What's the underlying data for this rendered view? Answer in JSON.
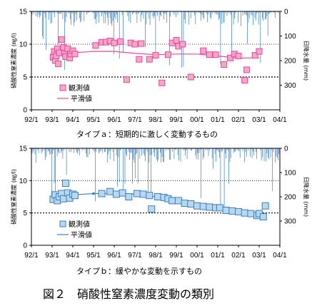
{
  "figure_title": "図２　硝酸性窒素濃度変動の類別",
  "chart_data": [
    {
      "type": "scatter",
      "caption": "タイプａ：短期的に激しく変動するもの",
      "ylabel": "硝酸性窒素濃度 (㎎/l)",
      "y2label": "日降水量 (mm)",
      "ylim": [
        0,
        15
      ],
      "y2lim": [
        0,
        400
      ],
      "yticks": [
        "0",
        "5",
        "10",
        "15"
      ],
      "y2ticks": [
        "0",
        "100",
        "200",
        "300"
      ],
      "xticks": [
        "92/1",
        "93/1",
        "94/1",
        "95/1",
        "96/1",
        "97/1",
        "98/1",
        "99/1",
        "00/1",
        "01/1",
        "02/1",
        "03/1",
        "04/1"
      ],
      "reference_line": 5,
      "legend_position": "bottom-left",
      "series": [
        {
          "name": "観測値",
          "color": "#e8489a",
          "fill": "#f5a6c9",
          "x": [
            1993.05,
            1993.1,
            1993.15,
            1993.2,
            1993.25,
            1993.3,
            1993.35,
            1993.45,
            1993.55,
            1993.6,
            1993.65,
            1993.75,
            1993.85,
            1993.9,
            1994.0,
            1994.1,
            1995.1,
            1995.4,
            1995.6,
            1995.8,
            1996.0,
            1996.3,
            1996.6,
            1996.8,
            1997.0,
            1997.2,
            1997.3,
            1997.7,
            1998.0,
            1998.3,
            1998.6,
            1998.8,
            1999.0,
            1999.1,
            1999.3,
            1999.7,
            2000.3,
            2000.6,
            2000.9,
            2001.3,
            2001.6,
            2001.8,
            2002.0,
            2002.3,
            2002.4,
            2002.8,
            2003.0
          ],
          "y": [
            8.0,
            8.9,
            7.5,
            8.2,
            9.3,
            7.0,
            8.7,
            10.7,
            9.5,
            8.6,
            8.1,
            9.3,
            7.9,
            8.5,
            9.0,
            8.5,
            9.8,
            10.3,
            10.3,
            10.5,
            10.2,
            10.4,
            4.6,
            10.2,
            10.0,
            7.7,
            10.1,
            7.7,
            8.3,
            4.1,
            8.4,
            10.2,
            10.6,
            9.7,
            10.0,
            5.0,
            9.0,
            8.4,
            8.4,
            6.9,
            7.9,
            8.5,
            8.2,
            4.5,
            6.1,
            8.3,
            8.9
          ]
        },
        {
          "name": "平滑値",
          "color": "#e8489a",
          "x": [
            1993.0,
            1994.0,
            1995.0,
            1996.0,
            1997.0,
            1998.0,
            1999.0,
            2000.0,
            2001.0,
            2002.0,
            2003.0
          ],
          "y": [
            8.5,
            8.7,
            8.9,
            8.9,
            8.6,
            8.4,
            8.5,
            8.5,
            8.2,
            7.9,
            7.9
          ]
        }
      ],
      "rain_color": "#3a80c0"
    },
    {
      "type": "scatter",
      "caption": "タイプｂ：緩やかな変動を示すもの",
      "ylabel": "硝酸性窒素濃度 (㎎/l)",
      "y2label": "日降水量 (mm)",
      "ylim": [
        0,
        15
      ],
      "y2lim": [
        0,
        400
      ],
      "yticks": [
        "0",
        "5",
        "10",
        "15"
      ],
      "y2ticks": [
        "0",
        "100",
        "200",
        "300"
      ],
      "xticks": [
        "92/1",
        "93/1",
        "94/1",
        "95/1",
        "96/1",
        "97/1",
        "98/1",
        "99/1",
        "00/1",
        "01/1",
        "02/1",
        "03/1",
        "04/1"
      ],
      "reference_line": 5,
      "legend_position": "bottom-left",
      "series": [
        {
          "name": "観測値",
          "color": "#3a80c0",
          "fill": "#b8d8f0",
          "x": [
            1993.05,
            1993.15,
            1993.25,
            1993.35,
            1993.45,
            1993.55,
            1993.65,
            1993.75,
            1993.85,
            1994.0,
            1994.1,
            1995.4,
            1995.8,
            1996.1,
            1996.4,
            1996.7,
            1997.1,
            1997.4,
            1997.7,
            1997.8,
            1998.1,
            1998.4,
            1998.6,
            1998.8,
            1999.1,
            1999.4,
            1999.7,
            2000.0,
            2000.3,
            2000.6,
            2000.9,
            2001.1,
            2001.4,
            2001.7,
            2002.0,
            2002.3,
            2002.6,
            2002.9,
            2003.0,
            2003.2,
            2003.3
          ],
          "y": [
            7.1,
            7.8,
            6.9,
            7.5,
            8.0,
            7.2,
            9.6,
            8.1,
            7.3,
            7.9,
            7.7,
            8.0,
            8.3,
            7.9,
            8.1,
            7.5,
            8.0,
            7.9,
            7.7,
            5.6,
            7.5,
            7.4,
            7.2,
            6.9,
            6.9,
            6.5,
            6.4,
            6.1,
            6.0,
            5.9,
            5.8,
            5.8,
            5.4,
            5.3,
            5.2,
            5.0,
            4.9,
            4.6,
            4.9,
            4.4,
            6.1
          ]
        },
        {
          "name": "平滑値",
          "color": "#3a80c0",
          "x": [
            1993.0,
            1993.5,
            1994.0,
            1995.0,
            1996.0,
            1997.0,
            1997.5,
            1998.0,
            1999.0,
            2000.0,
            2001.0,
            2002.0,
            2003.0,
            2003.3
          ],
          "y": [
            7.3,
            7.6,
            7.8,
            8.0,
            8.0,
            7.9,
            7.7,
            7.5,
            7.0,
            6.3,
            5.6,
            5.1,
            4.8,
            4.8
          ]
        }
      ],
      "rain_color": "#3a80c0"
    }
  ]
}
